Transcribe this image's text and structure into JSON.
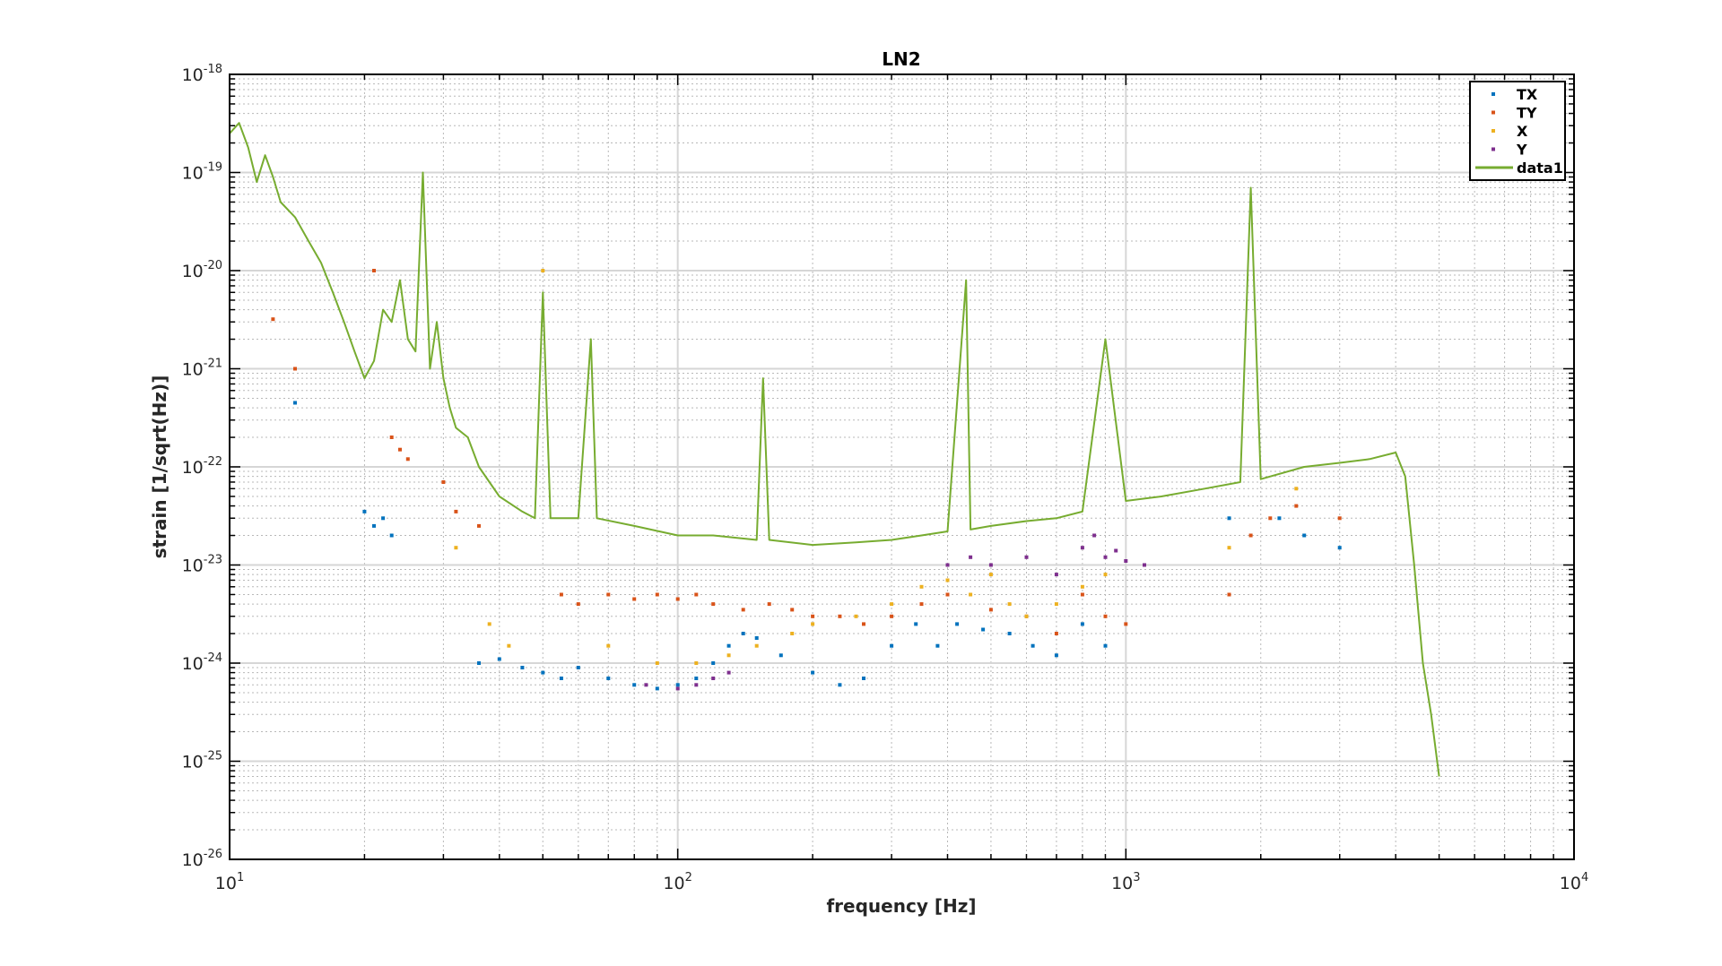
{
  "chart_data": {
    "type": "scatter",
    "title": "LN2",
    "xlabel": "frequency [Hz]",
    "ylabel": "strain [1/sqrt(Hz)]",
    "xscale": "log",
    "yscale": "log",
    "xlim": [
      10,
      10000
    ],
    "ylim": [
      1e-26,
      1e-18
    ],
    "grid": true,
    "minor_grid": true,
    "legend_position": "top-right",
    "x_ticks": [
      {
        "base": "10",
        "exp": "1"
      },
      {
        "base": "10",
        "exp": "2"
      },
      {
        "base": "10",
        "exp": "3"
      },
      {
        "base": "10",
        "exp": "4"
      }
    ],
    "y_ticks": [
      {
        "base": "10",
        "exp": "-26"
      },
      {
        "base": "10",
        "exp": "-25"
      },
      {
        "base": "10",
        "exp": "-24"
      },
      {
        "base": "10",
        "exp": "-23"
      },
      {
        "base": "10",
        "exp": "-22"
      },
      {
        "base": "10",
        "exp": "-21"
      },
      {
        "base": "10",
        "exp": "-20"
      },
      {
        "base": "10",
        "exp": "-19"
      },
      {
        "base": "10",
        "exp": "-18"
      }
    ],
    "series": [
      {
        "name": "TX",
        "style": "dots",
        "color": "#0072BD",
        "points": [
          [
            14,
            4.5e-22
          ],
          [
            20,
            3.5e-23
          ],
          [
            21,
            2.5e-23
          ],
          [
            22,
            3e-23
          ],
          [
            23,
            2e-23
          ],
          [
            36,
            1e-24
          ],
          [
            40,
            1.1e-24
          ],
          [
            45,
            9e-25
          ],
          [
            50,
            8e-25
          ],
          [
            55,
            7e-25
          ],
          [
            60,
            9e-25
          ],
          [
            70,
            7e-25
          ],
          [
            80,
            6e-25
          ],
          [
            90,
            5.5e-25
          ],
          [
            100,
            6e-25
          ],
          [
            110,
            7e-25
          ],
          [
            120,
            1e-24
          ],
          [
            130,
            1.5e-24
          ],
          [
            140,
            2e-24
          ],
          [
            150,
            1.8e-24
          ],
          [
            170,
            1.2e-24
          ],
          [
            200,
            8e-25
          ],
          [
            230,
            6e-25
          ],
          [
            260,
            7e-25
          ],
          [
            300,
            1.5e-24
          ],
          [
            340,
            2.5e-24
          ],
          [
            380,
            1.5e-24
          ],
          [
            420,
            2.5e-24
          ],
          [
            480,
            2.2e-24
          ],
          [
            550,
            2e-24
          ],
          [
            620,
            1.5e-24
          ],
          [
            700,
            1.2e-24
          ],
          [
            800,
            2.5e-24
          ],
          [
            900,
            1.5e-24
          ],
          [
            1700,
            3e-23
          ],
          [
            2200,
            3e-23
          ],
          [
            2500,
            2e-23
          ],
          [
            3000,
            1.5e-23
          ]
        ]
      },
      {
        "name": "TY",
        "style": "dots",
        "color": "#D95319",
        "points": [
          [
            12.5,
            3.2e-21
          ],
          [
            14,
            1e-21
          ],
          [
            21,
            1e-20
          ],
          [
            23,
            2e-22
          ],
          [
            24,
            1.5e-22
          ],
          [
            25,
            1.2e-22
          ],
          [
            30,
            7e-23
          ],
          [
            32,
            3.5e-23
          ],
          [
            36,
            2.5e-23
          ],
          [
            55,
            5e-24
          ],
          [
            60,
            4e-24
          ],
          [
            70,
            5e-24
          ],
          [
            80,
            4.5e-24
          ],
          [
            90,
            5e-24
          ],
          [
            100,
            4.5e-24
          ],
          [
            110,
            5e-24
          ],
          [
            120,
            4e-24
          ],
          [
            140,
            3.5e-24
          ],
          [
            160,
            4e-24
          ],
          [
            180,
            3.5e-24
          ],
          [
            200,
            3e-24
          ],
          [
            230,
            3e-24
          ],
          [
            260,
            2.5e-24
          ],
          [
            300,
            3e-24
          ],
          [
            350,
            4e-24
          ],
          [
            400,
            5e-24
          ],
          [
            500,
            3.5e-24
          ],
          [
            600,
            3e-24
          ],
          [
            700,
            2e-24
          ],
          [
            800,
            5e-24
          ],
          [
            900,
            3e-24
          ],
          [
            1000,
            2.5e-24
          ],
          [
            1700,
            5e-24
          ],
          [
            1900,
            2e-23
          ],
          [
            2100,
            3e-23
          ],
          [
            2400,
            4e-23
          ],
          [
            3000,
            3e-23
          ]
        ]
      },
      {
        "name": "X",
        "style": "dots",
        "color": "#EDB120",
        "points": [
          [
            32,
            1.5e-23
          ],
          [
            38,
            2.5e-24
          ],
          [
            42,
            1.5e-24
          ],
          [
            50,
            1e-20
          ],
          [
            70,
            1.5e-24
          ],
          [
            90,
            1e-24
          ],
          [
            110,
            1e-24
          ],
          [
            130,
            1.2e-24
          ],
          [
            150,
            1.5e-24
          ],
          [
            180,
            2e-24
          ],
          [
            200,
            2.5e-24
          ],
          [
            250,
            3e-24
          ],
          [
            300,
            4e-24
          ],
          [
            350,
            6e-24
          ],
          [
            400,
            7e-24
          ],
          [
            450,
            5e-24
          ],
          [
            500,
            8e-24
          ],
          [
            550,
            4e-24
          ],
          [
            600,
            3e-24
          ],
          [
            700,
            4e-24
          ],
          [
            800,
            6e-24
          ],
          [
            900,
            8e-24
          ],
          [
            1700,
            1.5e-23
          ],
          [
            2400,
            6e-23
          ]
        ]
      },
      {
        "name": "Y",
        "style": "dots",
        "color": "#7E2F8E",
        "points": [
          [
            85,
            6e-25
          ],
          [
            100,
            5.5e-25
          ],
          [
            110,
            6e-25
          ],
          [
            120,
            7e-25
          ],
          [
            130,
            8e-25
          ],
          [
            400,
            1e-23
          ],
          [
            450,
            1.2e-23
          ],
          [
            500,
            1e-23
          ],
          [
            600,
            1.2e-23
          ],
          [
            700,
            8e-24
          ],
          [
            800,
            1.5e-23
          ],
          [
            850,
            2e-23
          ],
          [
            900,
            1.2e-23
          ],
          [
            950,
            1.4e-23
          ],
          [
            1000,
            1.1e-23
          ],
          [
            1100,
            1e-23
          ]
        ]
      },
      {
        "name": "data1",
        "style": "line",
        "color": "#77AC30",
        "points": [
          [
            10,
            2.5e-19
          ],
          [
            10.5,
            3.2e-19
          ],
          [
            11,
            1.8e-19
          ],
          [
            11.5,
            8e-20
          ],
          [
            12,
            1.5e-19
          ],
          [
            12.5,
            9e-20
          ],
          [
            13,
            5e-20
          ],
          [
            14,
            3.5e-20
          ],
          [
            15,
            2e-20
          ],
          [
            16,
            1.2e-20
          ],
          [
            17,
            6e-21
          ],
          [
            18,
            3e-21
          ],
          [
            19,
            1.5e-21
          ],
          [
            20,
            8e-22
          ],
          [
            21,
            1.2e-21
          ],
          [
            22,
            4e-21
          ],
          [
            23,
            3e-21
          ],
          [
            24,
            8e-21
          ],
          [
            25,
            2e-21
          ],
          [
            26,
            1.5e-21
          ],
          [
            27,
            1e-19
          ],
          [
            28,
            1e-21
          ],
          [
            29,
            3e-21
          ],
          [
            30,
            8e-22
          ],
          [
            31,
            4e-22
          ],
          [
            32,
            2.5e-22
          ],
          [
            34,
            2e-22
          ],
          [
            36,
            1e-22
          ],
          [
            38,
            7e-23
          ],
          [
            40,
            5e-23
          ],
          [
            45,
            3.5e-23
          ],
          [
            48,
            3e-23
          ],
          [
            50,
            6e-21
          ],
          [
            52,
            3e-23
          ],
          [
            60,
            3e-23
          ],
          [
            64,
            2e-21
          ],
          [
            66,
            3e-23
          ],
          [
            80,
            2.5e-23
          ],
          [
            100,
            2e-23
          ],
          [
            120,
            2e-23
          ],
          [
            150,
            1.8e-23
          ],
          [
            155,
            8e-22
          ],
          [
            160,
            1.8e-23
          ],
          [
            200,
            1.6e-23
          ],
          [
            250,
            1.7e-23
          ],
          [
            300,
            1.8e-23
          ],
          [
            350,
            2e-23
          ],
          [
            400,
            2.2e-23
          ],
          [
            440,
            8e-21
          ],
          [
            450,
            2.3e-23
          ],
          [
            500,
            2.5e-23
          ],
          [
            600,
            2.8e-23
          ],
          [
            700,
            3e-23
          ],
          [
            800,
            3.5e-23
          ],
          [
            900,
            2e-21
          ],
          [
            1000,
            4.5e-23
          ],
          [
            1200,
            5e-23
          ],
          [
            1500,
            6e-23
          ],
          [
            1800,
            7e-23
          ],
          [
            1900,
            7e-20
          ],
          [
            2000,
            7.5e-23
          ],
          [
            2500,
            1e-22
          ],
          [
            3000,
            1.1e-22
          ],
          [
            3500,
            1.2e-22
          ],
          [
            4000,
            1.4e-22
          ],
          [
            4200,
            8e-23
          ],
          [
            4400,
            1e-23
          ],
          [
            4600,
            1e-24
          ],
          [
            4800,
            3e-25
          ],
          [
            5000,
            7e-26
          ]
        ]
      }
    ]
  }
}
